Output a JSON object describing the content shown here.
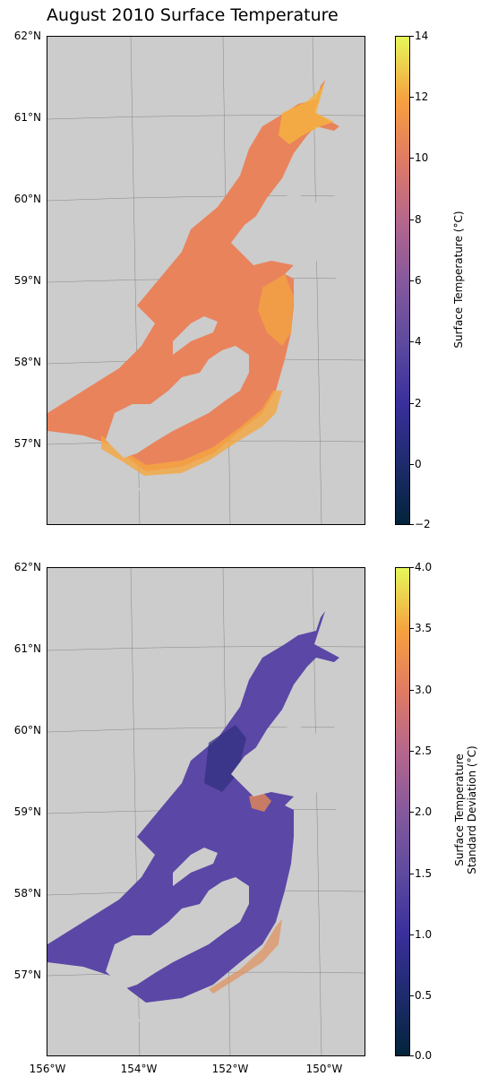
{
  "title": "August 2010 Surface Temperature",
  "latitude_labels": [
    "62°N",
    "61°N",
    "60°N",
    "59°N",
    "58°N",
    "57°N"
  ],
  "longitude_labels": [
    "156°W",
    "154°W",
    "152°W",
    "150°W"
  ],
  "top_panel": {
    "variable": "surface temperature",
    "colorbar": {
      "label": "Surface Temperature (°C)",
      "ticks": [
        "14",
        "12",
        "10",
        "8",
        "6",
        "4",
        "2",
        "0",
        "−2"
      ],
      "range": [
        -2,
        14
      ]
    }
  },
  "bottom_panel": {
    "variable": "surface temperature standard deviation",
    "colorbar": {
      "label_line1": "Surface Temperature",
      "label_line2": "Standard Deviation (°C)",
      "ticks": [
        "4.0",
        "3.5",
        "3.0",
        "2.5",
        "2.0",
        "1.5",
        "1.0",
        "0.5",
        "0.0"
      ],
      "range": [
        0.0,
        4.0
      ]
    }
  },
  "colors": {
    "land": "#cccccc",
    "warm_ocean": "#e9835c",
    "ocean_orange": "#f0935a",
    "hot_yellow": "#f6b13a",
    "sd_purple": "#5b47a6",
    "sd_dark": "#2d2f7e"
  }
}
